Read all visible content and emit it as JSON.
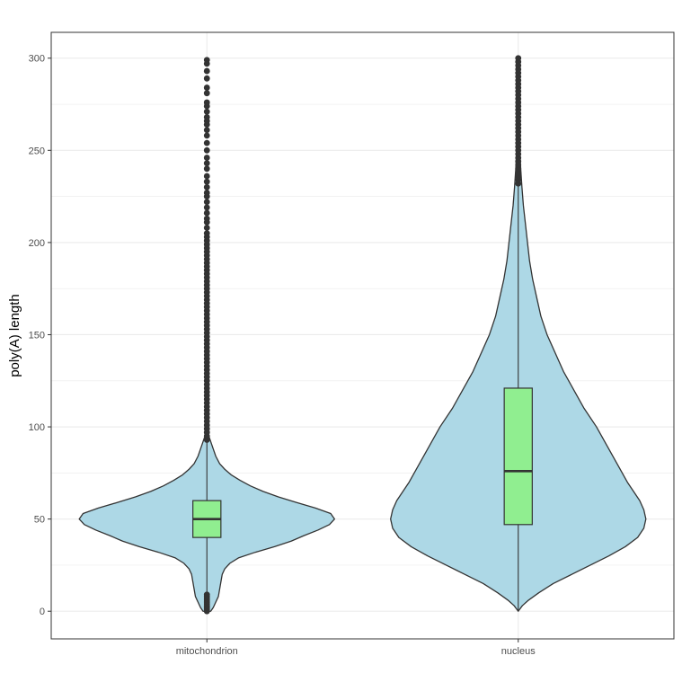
{
  "chart_data": {
    "type": "violin",
    "ylabel": "poly(A) length",
    "xlabel": "",
    "ylim": [
      -15,
      314
    ],
    "yticks": [
      0,
      50,
      100,
      150,
      200,
      250,
      300
    ],
    "grid": true,
    "categories": [
      "mitochondrion",
      "nucleus"
    ],
    "colors": {
      "violin_fill": "#add8e6",
      "box_fill": "#90ee90",
      "outline": "#333333",
      "outlier": "#333333",
      "grid_major": "#ebebeb",
      "panel_border": "#333333"
    },
    "groups": [
      {
        "name": "mitochondrion",
        "box": {
          "lower_whisker": 0,
          "q1": 40,
          "median": 50,
          "q3": 60,
          "upper_whisker": 92
        },
        "density_profile": [
          [
            0,
            0.03
          ],
          [
            2,
            0.05
          ],
          [
            5,
            0.07
          ],
          [
            8,
            0.09
          ],
          [
            12,
            0.1
          ],
          [
            16,
            0.11
          ],
          [
            20,
            0.12
          ],
          [
            23,
            0.14
          ],
          [
            26,
            0.18
          ],
          [
            29,
            0.25
          ],
          [
            32,
            0.38
          ],
          [
            35,
            0.53
          ],
          [
            38,
            0.66
          ],
          [
            41,
            0.76
          ],
          [
            44,
            0.87
          ],
          [
            47,
            0.96
          ],
          [
            50,
            1.0
          ],
          [
            53,
            0.97
          ],
          [
            56,
            0.85
          ],
          [
            59,
            0.7
          ],
          [
            62,
            0.56
          ],
          [
            65,
            0.44
          ],
          [
            68,
            0.34
          ],
          [
            71,
            0.26
          ],
          [
            74,
            0.19
          ],
          [
            77,
            0.14
          ],
          [
            80,
            0.1
          ],
          [
            84,
            0.07
          ],
          [
            88,
            0.05
          ],
          [
            92,
            0.03
          ],
          [
            96,
            0.01
          ],
          [
            100,
            0.003
          ]
        ],
        "outliers": [
          0,
          1,
          2,
          3,
          4,
          5,
          6,
          7,
          8,
          9,
          93,
          95,
          97,
          99,
          101,
          103,
          105,
          107,
          109,
          111,
          113,
          115,
          117,
          119,
          121,
          123,
          125,
          127,
          129,
          131,
          133,
          135,
          137,
          139,
          141,
          143,
          145,
          147,
          149,
          151,
          153,
          155,
          157,
          159,
          161,
          163,
          165,
          167,
          169,
          171,
          173,
          175,
          177,
          179,
          181,
          183,
          185,
          187,
          189,
          191,
          193,
          195,
          197,
          199,
          201,
          203,
          205,
          208,
          211,
          213,
          216,
          219,
          222,
          225,
          227,
          230,
          233,
          236,
          240,
          243,
          246,
          250,
          254,
          258,
          261,
          264,
          266,
          268,
          271,
          274,
          276,
          281,
          284,
          289,
          293,
          297,
          299
        ]
      },
      {
        "name": "nucleus",
        "box": {
          "lower_whisker": 0,
          "q1": 47,
          "median": 76,
          "q3": 121,
          "upper_whisker": 232
        },
        "density_profile": [
          [
            0,
            0.0
          ],
          [
            3,
            0.02
          ],
          [
            6,
            0.05
          ],
          [
            10,
            0.1
          ],
          [
            15,
            0.17
          ],
          [
            20,
            0.26
          ],
          [
            25,
            0.35
          ],
          [
            30,
            0.44
          ],
          [
            35,
            0.52
          ],
          [
            40,
            0.58
          ],
          [
            45,
            0.61
          ],
          [
            50,
            0.62
          ],
          [
            55,
            0.61
          ],
          [
            60,
            0.59
          ],
          [
            65,
            0.56
          ],
          [
            70,
            0.53
          ],
          [
            80,
            0.48
          ],
          [
            90,
            0.43
          ],
          [
            100,
            0.38
          ],
          [
            110,
            0.32
          ],
          [
            120,
            0.27
          ],
          [
            130,
            0.22
          ],
          [
            140,
            0.18
          ],
          [
            150,
            0.14
          ],
          [
            160,
            0.11
          ],
          [
            170,
            0.09
          ],
          [
            180,
            0.07
          ],
          [
            190,
            0.055
          ],
          [
            200,
            0.045
          ],
          [
            210,
            0.035
          ],
          [
            220,
            0.025
          ],
          [
            230,
            0.018
          ],
          [
            240,
            0.012
          ],
          [
            250,
            0.008
          ],
          [
            260,
            0.005
          ],
          [
            270,
            0.003
          ],
          [
            280,
            0.002
          ],
          [
            290,
            0.001
          ],
          [
            300,
            0.0005
          ]
        ],
        "outliers": [
          232,
          234,
          236,
          238,
          240,
          242,
          244,
          246,
          248,
          250,
          252,
          254,
          256,
          258,
          260,
          262,
          264,
          266,
          268,
          270,
          272,
          274,
          276,
          278,
          280,
          282,
          284,
          286,
          288,
          290,
          292,
          294,
          296,
          298,
          300
        ]
      }
    ]
  }
}
